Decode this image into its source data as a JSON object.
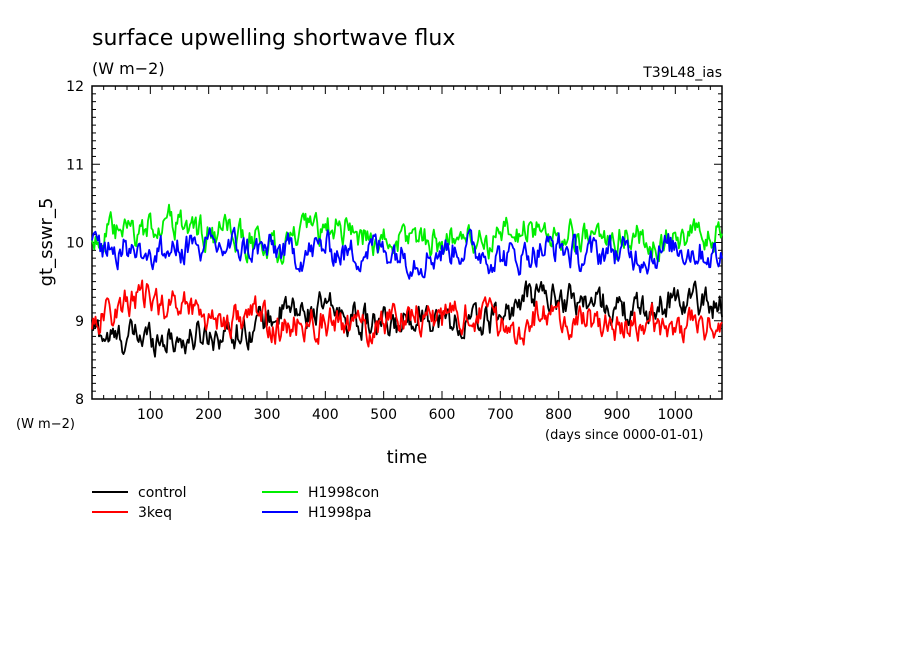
{
  "chart_data": {
    "type": "line",
    "title": "surface upwelling shortwave flux",
    "subtitle": "(W m−2)",
    "run_label": "T39L48_ias",
    "xlabel": "time",
    "xunits": "(days since 0000-01-01)",
    "ylabel": "gt_sswr_5",
    "yunits": "(W m−2)",
    "xlim": [
      0,
      1080
    ],
    "ylim": [
      8,
      12
    ],
    "xticks": [
      100,
      200,
      300,
      400,
      500,
      600,
      700,
      800,
      900,
      1000
    ],
    "yticks": [
      8,
      9,
      10,
      11,
      12
    ],
    "x": [
      0,
      40,
      80,
      120,
      160,
      200,
      240,
      280,
      320,
      360,
      400,
      440,
      480,
      520,
      560,
      600,
      640,
      680,
      720,
      760,
      800,
      840,
      880,
      920,
      960,
      1000,
      1040,
      1080
    ],
    "series": [
      {
        "name": "control",
        "color": "#000000",
        "values": [
          8.9,
          8.75,
          8.8,
          8.8,
          8.75,
          8.85,
          8.85,
          8.95,
          9.1,
          9.1,
          9.15,
          9.05,
          8.95,
          8.9,
          9.15,
          9.0,
          8.95,
          9.0,
          9.15,
          9.35,
          9.3,
          9.25,
          9.2,
          9.1,
          9.15,
          9.3,
          9.25,
          9.2
        ]
      },
      {
        "name": "3keq",
        "color": "#ff0000",
        "values": [
          9.0,
          9.15,
          9.3,
          9.2,
          9.25,
          9.05,
          9.0,
          9.1,
          8.85,
          8.95,
          9.0,
          8.9,
          8.9,
          9.1,
          9.1,
          9.0,
          9.1,
          9.05,
          8.85,
          9.05,
          9.0,
          9.0,
          8.95,
          8.9,
          9.0,
          8.9,
          8.95,
          8.9
        ]
      },
      {
        "name": "H1998con",
        "color": "#00ee00",
        "values": [
          10.05,
          10.1,
          10.1,
          10.3,
          10.2,
          10.1,
          10.1,
          10.0,
          9.9,
          10.1,
          10.15,
          10.2,
          10.0,
          10.0,
          10.1,
          10.0,
          10.1,
          10.0,
          10.1,
          10.2,
          10.1,
          10.0,
          10.05,
          10.1,
          10.0,
          10.05,
          10.05,
          10.1
        ]
      },
      {
        "name": "H1998pa",
        "color": "#0000ff",
        "values": [
          9.95,
          9.95,
          9.9,
          9.85,
          9.95,
          9.9,
          9.95,
          9.9,
          9.9,
          9.85,
          9.95,
          9.85,
          9.95,
          9.9,
          9.8,
          9.9,
          9.95,
          9.85,
          9.8,
          9.9,
          9.95,
          9.8,
          9.9,
          9.85,
          9.85,
          9.95,
          9.9,
          9.8
        ]
      }
    ]
  }
}
